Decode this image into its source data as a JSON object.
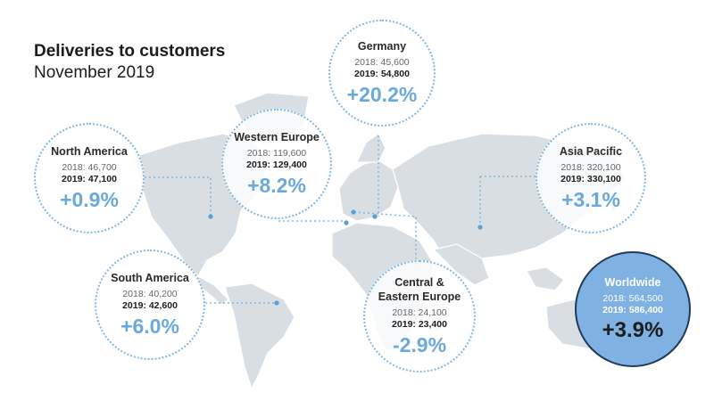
{
  "header": {
    "title": "Deliveries to customers",
    "subtitle": "November 2019"
  },
  "colors": {
    "accent": "#6aa9dc",
    "map_land": "#d9dee2",
    "worldwide_fill": "#7fb2e2"
  },
  "regions": [
    {
      "key": "germany",
      "name": "Germany",
      "y2018": "2018: 45,600",
      "y2019": "2019: 54,800",
      "change": "+20.2%"
    },
    {
      "key": "north-america",
      "name": "North America",
      "y2018": "2018: 46,700",
      "y2019": "2019: 47,100",
      "change": "+0.9%"
    },
    {
      "key": "western-europe",
      "name": "Western Europe",
      "y2018": "2018: 119,600",
      "y2019": "2019: 129,400",
      "change": "+8.2%"
    },
    {
      "key": "asia-pacific",
      "name": "Asia Pacific",
      "y2018": "2018: 320,100",
      "y2019": "2019: 330,100",
      "change": "+3.1%"
    },
    {
      "key": "south-america",
      "name": "South America",
      "y2018": "2018: 40,200",
      "y2019": "2019: 42,600",
      "change": "+6.0%"
    },
    {
      "key": "central-eastern-europe",
      "name": "Central & Eastern Europe",
      "y2018": "2018: 24,100",
      "y2019": "2019: 23,400",
      "change": "-2.9%"
    },
    {
      "key": "worldwide",
      "name": "Worldwide",
      "y2018": "2018: 564,500",
      "y2019": "2019: 586,400",
      "change": "+3.9%"
    }
  ]
}
